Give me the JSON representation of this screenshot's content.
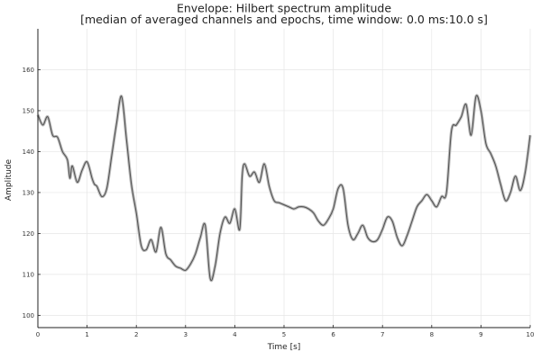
{
  "chart_data": {
    "type": "line",
    "title": "Envelope: Hilbert spectrum amplitude",
    "subtitle": "[median of averaged channels and epochs, time window: 0.0 ms:10.0 s]",
    "xlabel": "Time [s]",
    "ylabel": "Amplitude",
    "xlim": [
      0,
      10
    ],
    "ylim": [
      97,
      170
    ],
    "xticks": [
      0,
      1,
      2,
      3,
      4,
      5,
      6,
      7,
      8,
      9,
      10
    ],
    "yticks": [
      100,
      110,
      120,
      130,
      140,
      150,
      160
    ],
    "grid": true,
    "legend": "none",
    "colors": {
      "line": "#555555",
      "band": "#bdbdbd",
      "axis": "#222222",
      "grid": "#e6e6e6"
    },
    "x": [
      0.0,
      0.1,
      0.2,
      0.3,
      0.4,
      0.5,
      0.6,
      0.65,
      0.7,
      0.8,
      0.9,
      1.0,
      1.1,
      1.15,
      1.2,
      1.3,
      1.4,
      1.5,
      1.6,
      1.7,
      1.8,
      1.9,
      2.0,
      2.1,
      2.2,
      2.3,
      2.4,
      2.5,
      2.6,
      2.7,
      2.8,
      2.9,
      3.0,
      3.1,
      3.2,
      3.3,
      3.4,
      3.5,
      3.6,
      3.7,
      3.8,
      3.9,
      4.0,
      4.1,
      4.15,
      4.2,
      4.3,
      4.4,
      4.5,
      4.6,
      4.7,
      4.8,
      4.9,
      5.0,
      5.1,
      5.2,
      5.3,
      5.4,
      5.5,
      5.6,
      5.7,
      5.8,
      5.9,
      6.0,
      6.1,
      6.2,
      6.3,
      6.4,
      6.5,
      6.6,
      6.7,
      6.8,
      6.9,
      7.0,
      7.1,
      7.2,
      7.3,
      7.4,
      7.5,
      7.6,
      7.7,
      7.8,
      7.9,
      8.0,
      8.1,
      8.2,
      8.3,
      8.4,
      8.5,
      8.6,
      8.7,
      8.8,
      8.9,
      9.0,
      9.1,
      9.2,
      9.3,
      9.4,
      9.5,
      9.6,
      9.7,
      9.8,
      9.9,
      10.0
    ],
    "values": [
      149.0,
      146.5,
      148.5,
      144.0,
      143.5,
      140.0,
      138.0,
      133.5,
      136.5,
      132.5,
      135.5,
      137.5,
      133.5,
      132.0,
      131.5,
      129.0,
      131.0,
      139.0,
      147.0,
      153.5,
      143.0,
      132.0,
      125.0,
      117.0,
      116.0,
      118.5,
      115.5,
      121.5,
      115.0,
      113.5,
      112.0,
      111.5,
      111.0,
      112.5,
      115.0,
      119.0,
      122.0,
      109.0,
      112.0,
      120.0,
      124.0,
      122.5,
      126.0,
      121.0,
      134.0,
      137.0,
      134.0,
      135.0,
      132.5,
      137.0,
      131.5,
      128.0,
      127.5,
      127.0,
      126.5,
      126.0,
      126.5,
      126.5,
      126.0,
      125.0,
      123.0,
      122.0,
      123.5,
      126.0,
      131.0,
      131.0,
      122.0,
      118.5,
      120.0,
      122.0,
      119.0,
      118.0,
      118.5,
      121.0,
      124.0,
      123.0,
      119.0,
      117.0,
      119.5,
      123.0,
      126.5,
      128.0,
      129.5,
      128.0,
      126.5,
      129.0,
      130.0,
      145.0,
      146.5,
      148.5,
      151.5,
      144.0,
      153.5,
      150.0,
      142.0,
      139.5,
      136.5,
      132.0,
      128.0,
      130.0,
      134.0,
      130.5,
      135.0,
      144.0
    ]
  }
}
